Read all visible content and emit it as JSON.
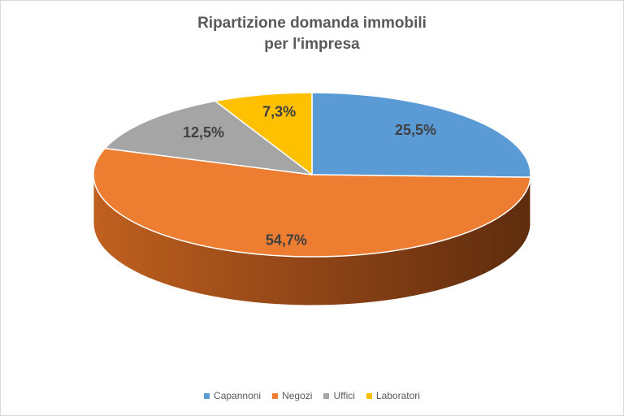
{
  "chart_data": {
    "type": "pie",
    "style": "3d",
    "title_lines": [
      "Ripartizione domanda immobili",
      "per l'impresa"
    ],
    "categories": [
      "Capannoni",
      "Negozi",
      "Uffici",
      "Laboratori"
    ],
    "values": [
      25.5,
      54.7,
      12.5,
      7.3
    ],
    "labels": [
      "25,5%",
      "54,7%",
      "12,5%",
      "7,3%"
    ],
    "colors": [
      "#5b9bd5",
      "#ed7d31",
      "#a5a5a5",
      "#ffc000"
    ],
    "legend_position": "bottom"
  }
}
